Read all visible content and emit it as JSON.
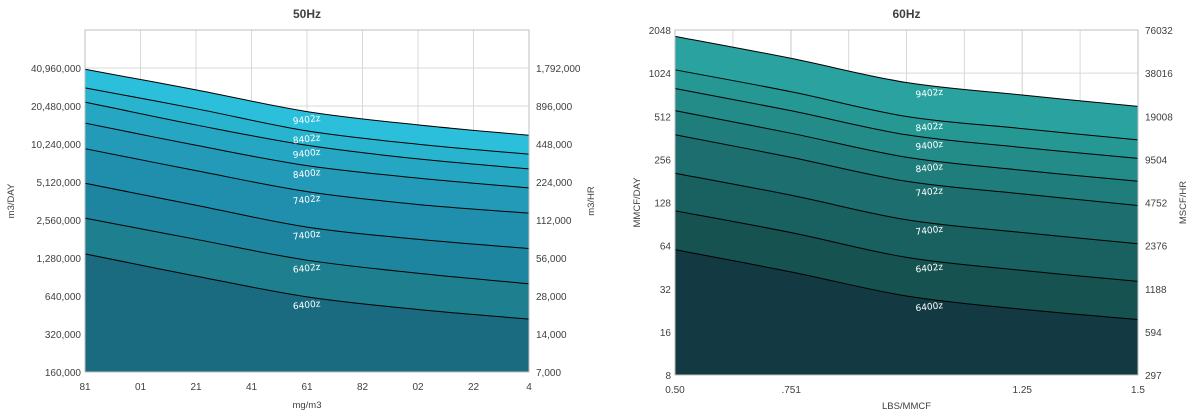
{
  "chart_data": [
    {
      "type": "area",
      "title": "50Hz",
      "xlabel": "mg/m3",
      "ylabel": "m3/DAY",
      "y2label": "m3/HR",
      "x_tick_labels": [
        "81",
        "01",
        "21",
        "41",
        "61",
        "82",
        "02",
        "22",
        "4"
      ],
      "y_scale": "log2",
      "y_ticks": [
        160000,
        320000,
        640000,
        1280000,
        2560000,
        5120000,
        10240000,
        20480000,
        40960000
      ],
      "y_tick_labels": [
        "160,000",
        "320,000",
        "640,000",
        "1,280,000",
        "2,560,000",
        "5,120,000",
        "10,240,000",
        "20,480,000",
        "40,960,000"
      ],
      "ylim": [
        160000,
        81920000
      ],
      "y2_tick_labels": [
        "7,000",
        "14,000",
        "28,000",
        "56,000",
        "112,000",
        "224,000",
        "448,000",
        "896,000",
        "1,792,000"
      ],
      "grid": true,
      "colors": [
        "#2bbfdb",
        "#28b3cf",
        "#25a6c2",
        "#239ab7",
        "#208ead",
        "#1e85a0",
        "#1e7f8e",
        "#1a6b80"
      ],
      "series": [
        {
          "name": "9402z",
          "values": [
            40000000,
            27500000,
            18500000,
            14500000,
            12000000
          ]
        },
        {
          "name": "8402z",
          "values": [
            28500000,
            19500000,
            13000000,
            10200000,
            8500000
          ]
        },
        {
          "name": "9400z",
          "values": [
            22000000,
            14500000,
            10000000,
            7800000,
            6500000
          ]
        },
        {
          "name": "8400z",
          "values": [
            15000000,
            10000000,
            6900000,
            5500000,
            4600000
          ]
        },
        {
          "name": "7402z",
          "values": [
            9400000,
            6300000,
            4300000,
            3400000,
            2900000
          ]
        },
        {
          "name": "7400z",
          "values": [
            5000000,
            3350000,
            2250000,
            1800000,
            1520000
          ]
        },
        {
          "name": "6402z",
          "values": [
            2650000,
            1800000,
            1230000,
            970000,
            800000
          ]
        },
        {
          "name": "6400z",
          "values": [
            1380000,
            920000,
            630000,
            500000,
            420000
          ]
        }
      ]
    },
    {
      "type": "area",
      "title": "60Hz",
      "xlabel": "LBS/MMCF",
      "ylabel": "MMCF/DAY",
      "y2label": "MSCF/HR",
      "x_tick_labels": [
        "0.50",
        ".751",
        "1.25",
        "1.5"
      ],
      "x_tick_values": [
        0.5,
        0.751,
        1.25,
        1.5
      ],
      "xlim": [
        0.5,
        1.5
      ],
      "y_scale": "log2",
      "y_ticks": [
        8,
        16,
        32,
        64,
        128,
        256,
        512,
        1024,
        2048
      ],
      "y_tick_labels": [
        "8",
        "16",
        "32",
        "64",
        "128",
        "256",
        "512",
        "1024",
        "2048"
      ],
      "ylim": [
        8,
        2048
      ],
      "y2_tick_labels": [
        "297",
        "594",
        "1188",
        "2376",
        "4752",
        "9504",
        "19008",
        "38016",
        "76032"
      ],
      "grid": true,
      "colors": [
        "#2aa3a0",
        "#269894",
        "#238b88",
        "#1f7e7c",
        "#1c6f6e",
        "#196060",
        "#165250",
        "#133a42"
      ],
      "series": [
        {
          "name": "9402z",
          "values": [
            1850,
            1300,
            880,
            720,
            600
          ]
        },
        {
          "name": "8402z",
          "values": [
            1080,
            760,
            510,
            420,
            350
          ]
        },
        {
          "name": "9400z",
          "values": [
            800,
            560,
            380,
            310,
            260
          ]
        },
        {
          "name": "8400z",
          "values": [
            560,
            390,
            265,
            215,
            180
          ]
        },
        {
          "name": "7402z",
          "values": [
            380,
            265,
            180,
            147,
            122
          ]
        },
        {
          "name": "7400z",
          "values": [
            205,
            144,
            97,
            79,
            66
          ]
        },
        {
          "name": "6402z",
          "values": [
            112,
            79,
            53,
            43,
            36
          ]
        },
        {
          "name": "6400z",
          "values": [
            60,
            42,
            28.5,
            23,
            19.5
          ]
        }
      ]
    }
  ]
}
